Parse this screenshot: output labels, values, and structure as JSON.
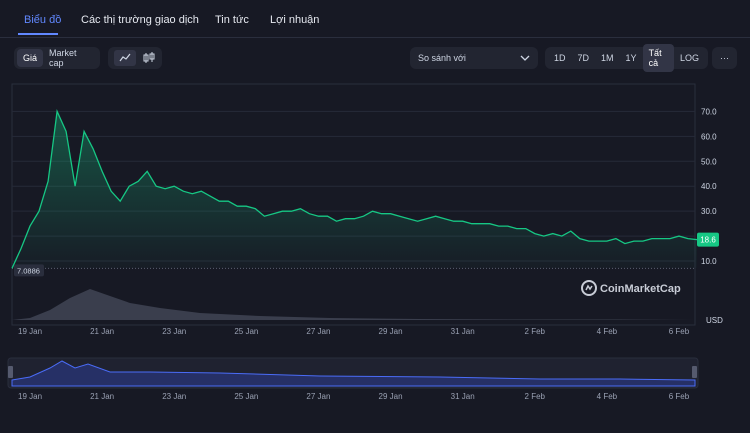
{
  "tabs": [
    "Biểu đồ",
    "Các thị trường giao dịch",
    "Tin tức",
    "Lợi nhuận"
  ],
  "toggle": [
    "Giá",
    "Market cap"
  ],
  "compare": "So sánh với",
  "ranges": [
    "1D",
    "7D",
    "1M",
    "1Y",
    "Tất cả",
    "LOG",
    "···"
  ],
  "chart_data": {
    "type": "line",
    "watermark": "CoinMarketCap",
    "y_unit": "USD",
    "categories": [
      null,
      null,
      "19 Jan",
      null,
      null,
      null,
      null,
      null,
      null,
      null,
      "21 Jan",
      null,
      null,
      null,
      null,
      null,
      null,
      null,
      "23 Jan",
      null,
      null,
      null,
      null,
      null,
      null,
      null,
      "25 Jan",
      null,
      null,
      null,
      null,
      null,
      null,
      null,
      "27 Jan",
      null,
      null,
      null,
      null,
      null,
      null,
      null,
      "29 Jan",
      null,
      null,
      null,
      null,
      null,
      null,
      null,
      "31 Jan",
      null,
      null,
      null,
      null,
      null,
      null,
      null,
      "2 Feb",
      null,
      null,
      null,
      null,
      null,
      null,
      null,
      "4 Feb",
      null,
      null,
      null,
      null,
      null,
      null,
      null,
      "6 Feb",
      null,
      null
    ],
    "series": [
      {
        "name": "Giá",
        "color": "#16c784",
        "values": [
          7.0886,
          15,
          24,
          30,
          42,
          70,
          62,
          40,
          62,
          55,
          46,
          38,
          34,
          40,
          42,
          46,
          40,
          39,
          40,
          38,
          37,
          38,
          36,
          34,
          34,
          32,
          32,
          31,
          28,
          29,
          30,
          30,
          31,
          29,
          28,
          28,
          26,
          27,
          27,
          28,
          30,
          29,
          29,
          28,
          27,
          26,
          27,
          28,
          27,
          26,
          26,
          25,
          25,
          25,
          24,
          24,
          23,
          23,
          21,
          20,
          21,
          20,
          22,
          19,
          18,
          18,
          18,
          19,
          17,
          18,
          18,
          19,
          19,
          19,
          20,
          19,
          18.6
        ],
        "value_labels": [
          "7.0886",
          null,
          null,
          null,
          null,
          null,
          null,
          null,
          null,
          null,
          null,
          null,
          null,
          null,
          null,
          null,
          null,
          null,
          null,
          null,
          null,
          null,
          null,
          null,
          null,
          null,
          null,
          null,
          null,
          null,
          null,
          null,
          null,
          null,
          null,
          null,
          null,
          null,
          null,
          null,
          null,
          null,
          null,
          null,
          null,
          null,
          null,
          null,
          null,
          null,
          null,
          null,
          null,
          null,
          null,
          null,
          null,
          null,
          null,
          null,
          null,
          null,
          null,
          null,
          null,
          null,
          null,
          null,
          null,
          null,
          null,
          null,
          null,
          null,
          null,
          null,
          "18.6"
        ]
      }
    ],
    "ylim": [
      0,
      81
    ],
    "yticks": [
      {
        "value": 10,
        "label": "10.0"
      },
      {
        "value": 20,
        "label": "20.0"
      },
      {
        "value": 30,
        "label": "30.0"
      },
      {
        "value": 40,
        "label": "40.0"
      },
      {
        "value": 50,
        "label": "50.0"
      },
      {
        "value": 60,
        "label": "60.0"
      },
      {
        "value": 70,
        "label": "70.0"
      }
    ],
    "grid": true
  }
}
